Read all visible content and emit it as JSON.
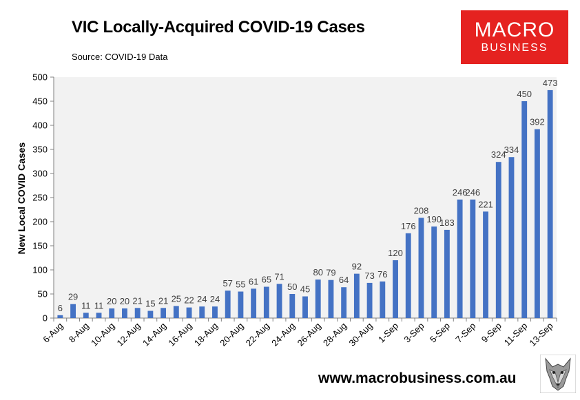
{
  "header": {
    "title": "VIC Locally-Acquired COVID-19 Cases",
    "source": "Source: COVID-19 Data"
  },
  "logo": {
    "line1": "MACRO",
    "line2": "BUSINESS",
    "color": "#e52220"
  },
  "footer": {
    "website": "www.macrobusiness.com.au",
    "emblem_icon": "wolf-head-icon"
  },
  "colors": {
    "bar": "#4472c4",
    "plot_background": "#f2f2f2"
  },
  "chart_data": {
    "type": "bar",
    "title": "VIC Locally-Acquired COVID-19 Cases",
    "ylabel": "New Local COVID Cases",
    "xlabel": "",
    "ylim": [
      0,
      500
    ],
    "yticks": [
      0,
      50,
      100,
      150,
      200,
      250,
      300,
      350,
      400,
      450,
      500
    ],
    "grid": false,
    "categories": [
      "6-Aug",
      "7-Aug",
      "8-Aug",
      "9-Aug",
      "10-Aug",
      "11-Aug",
      "12-Aug",
      "13-Aug",
      "14-Aug",
      "15-Aug",
      "16-Aug",
      "17-Aug",
      "18-Aug",
      "19-Aug",
      "20-Aug",
      "21-Aug",
      "22-Aug",
      "23-Aug",
      "24-Aug",
      "25-Aug",
      "26-Aug",
      "27-Aug",
      "28-Aug",
      "29-Aug",
      "30-Aug",
      "31-Aug",
      "1-Sep",
      "2-Sep",
      "3-Sep",
      "4-Sep",
      "5-Sep",
      "6-Sep",
      "7-Sep",
      "8-Sep",
      "9-Sep",
      "10-Sep",
      "11-Sep",
      "12-Sep",
      "13-Sep"
    ],
    "xtick_labels": [
      "6-Aug",
      "8-Aug",
      "10-Aug",
      "12-Aug",
      "14-Aug",
      "16-Aug",
      "18-Aug",
      "20-Aug",
      "22-Aug",
      "24-Aug",
      "26-Aug",
      "28-Aug",
      "30-Aug",
      "1-Sep",
      "3-Sep",
      "5-Sep",
      "7-Sep",
      "9-Sep",
      "11-Sep",
      "13-Sep"
    ],
    "values": [
      6,
      29,
      11,
      11,
      20,
      20,
      21,
      15,
      21,
      25,
      22,
      24,
      24,
      57,
      55,
      61,
      65,
      71,
      50,
      45,
      80,
      79,
      64,
      92,
      73,
      76,
      120,
      176,
      208,
      190,
      183,
      246,
      246,
      221,
      324,
      334,
      450,
      392,
      473
    ],
    "data_labels": [
      "6",
      "29",
      "11",
      "11",
      "20",
      "20",
      "21",
      "15",
      "21",
      "25",
      "22",
      "24",
      "24",
      "57",
      "55",
      "61",
      "65",
      "71",
      "50",
      "45",
      "80",
      "79",
      "64",
      "92",
      "73",
      "76",
      "120",
      "176",
      "208",
      "190",
      "183",
      "246",
      "246",
      "221",
      "324",
      "334",
      "450",
      "392",
      "473"
    ]
  }
}
